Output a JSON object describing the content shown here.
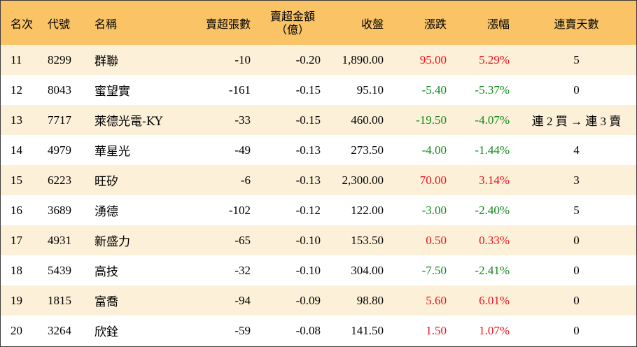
{
  "headers": {
    "rank": "名次",
    "code": "代號",
    "name": "名稱",
    "oversold": "賣超張數",
    "amount_line1": "賣超金額",
    "amount_line2": "（億）",
    "close": "收盤",
    "change": "漲跌",
    "pct": "漲幅",
    "days": "連賣天數"
  },
  "rows": [
    {
      "rank": "11",
      "code": "8299",
      "name": "群聯",
      "oversold": "-10",
      "amount": "-0.20",
      "close": "1,890.00",
      "change": "95.00",
      "pct": "5.29%",
      "days": "5",
      "dir": "up"
    },
    {
      "rank": "12",
      "code": "8043",
      "name": "蜜望實",
      "oversold": "-161",
      "amount": "-0.15",
      "close": "95.10",
      "change": "-5.40",
      "pct": "-5.37%",
      "days": "0",
      "dir": "down"
    },
    {
      "rank": "13",
      "code": "7717",
      "name": "萊德光電-KY",
      "oversold": "-33",
      "amount": "-0.15",
      "close": "460.00",
      "change": "-19.50",
      "pct": "-4.07%",
      "days": "連 2 買 → 連 3 賣",
      "dir": "down"
    },
    {
      "rank": "14",
      "code": "4979",
      "name": "華星光",
      "oversold": "-49",
      "amount": "-0.13",
      "close": "273.50",
      "change": "-4.00",
      "pct": "-1.44%",
      "days": "4",
      "dir": "down"
    },
    {
      "rank": "15",
      "code": "6223",
      "name": "旺矽",
      "oversold": "-6",
      "amount": "-0.13",
      "close": "2,300.00",
      "change": "70.00",
      "pct": "3.14%",
      "days": "3",
      "dir": "up"
    },
    {
      "rank": "16",
      "code": "3689",
      "name": "湧德",
      "oversold": "-102",
      "amount": "-0.12",
      "close": "122.00",
      "change": "-3.00",
      "pct": "-2.40%",
      "days": "5",
      "dir": "down"
    },
    {
      "rank": "17",
      "code": "4931",
      "name": "新盛力",
      "oversold": "-65",
      "amount": "-0.10",
      "close": "153.50",
      "change": "0.50",
      "pct": "0.33%",
      "days": "0",
      "dir": "up"
    },
    {
      "rank": "18",
      "code": "5439",
      "name": "高技",
      "oversold": "-32",
      "amount": "-0.10",
      "close": "304.00",
      "change": "-7.50",
      "pct": "-2.41%",
      "days": "0",
      "dir": "down"
    },
    {
      "rank": "19",
      "code": "1815",
      "name": "富喬",
      "oversold": "-94",
      "amount": "-0.09",
      "close": "98.80",
      "change": "5.60",
      "pct": "6.01%",
      "days": "0",
      "dir": "up"
    },
    {
      "rank": "20",
      "code": "3264",
      "name": "欣銓",
      "oversold": "-59",
      "amount": "-0.08",
      "close": "141.50",
      "change": "1.50",
      "pct": "1.07%",
      "days": "0",
      "dir": "up"
    }
  ],
  "colors": {
    "header_bg": "#f9c366",
    "stripe_bg": "#fdf0d8",
    "up": "#e8111c",
    "down": "#138a1b"
  }
}
